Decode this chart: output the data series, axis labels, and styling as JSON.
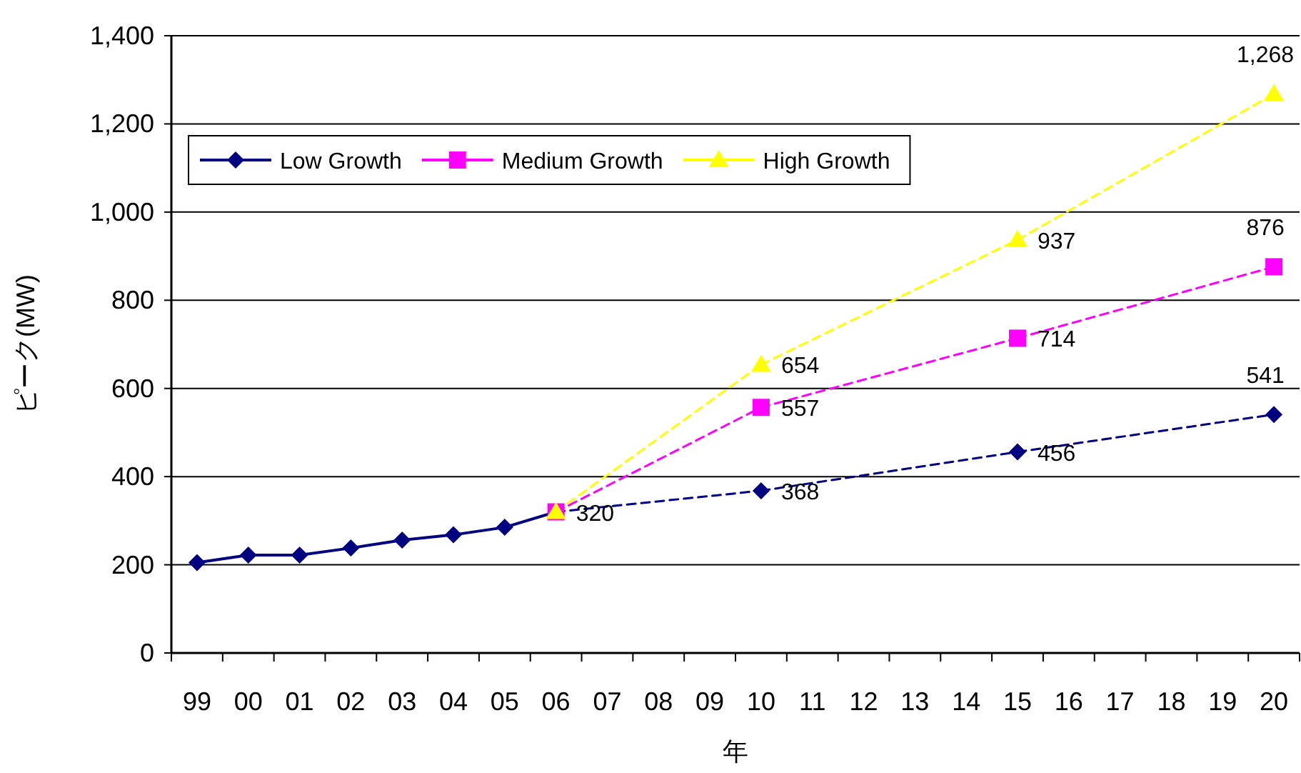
{
  "chart_data": {
    "type": "line",
    "xlabel": "年",
    "ylabel": "ピーク(MW)",
    "categories": [
      "99",
      "00",
      "01",
      "02",
      "03",
      "04",
      "05",
      "06",
      "07",
      "08",
      "09",
      "10",
      "11",
      "12",
      "13",
      "14",
      "15",
      "16",
      "17",
      "18",
      "19",
      "20"
    ],
    "ylim": [
      0,
      1400
    ],
    "yticks": [
      0,
      200,
      400,
      600,
      800,
      {
        "value": 1000,
        "label": "1,000"
      },
      {
        "value": 1200,
        "label": "1,200"
      },
      {
        "value": 1400,
        "label": "1,400"
      }
    ],
    "grid": "y",
    "legend": "top left",
    "series": [
      {
        "name": "Low Growth",
        "color": "#000080",
        "marker": "diamond",
        "values": [
          205,
          222,
          222,
          238,
          256,
          268,
          285,
          320,
          null,
          null,
          null,
          368,
          null,
          null,
          null,
          null,
          456,
          null,
          null,
          null,
          null,
          541
        ],
        "value_labels": [
          null,
          null,
          null,
          null,
          null,
          null,
          null,
          "320",
          null,
          null,
          null,
          "368",
          null,
          null,
          null,
          null,
          "456",
          null,
          null,
          null,
          null,
          "541"
        ]
      },
      {
        "name": "Medium Growth",
        "color": "#ff00ff",
        "marker": "square",
        "line_style": "dashed",
        "values": [
          null,
          null,
          null,
          null,
          null,
          null,
          null,
          320,
          null,
          null,
          null,
          557,
          null,
          null,
          null,
          null,
          714,
          null,
          null,
          null,
          null,
          876
        ],
        "value_labels": [
          null,
          null,
          null,
          null,
          null,
          null,
          null,
          null,
          null,
          null,
          null,
          "557",
          null,
          null,
          null,
          null,
          "714",
          null,
          null,
          null,
          null,
          "876"
        ]
      },
      {
        "name": "High Growth",
        "color": "#ffff00",
        "marker": "triangle",
        "line_style": "dashed",
        "values": [
          null,
          null,
          null,
          null,
          null,
          null,
          null,
          320,
          null,
          null,
          null,
          654,
          null,
          null,
          null,
          null,
          937,
          null,
          null,
          null,
          null,
          1268
        ],
        "value_labels": [
          null,
          null,
          null,
          null,
          null,
          null,
          null,
          null,
          null,
          null,
          null,
          "654",
          null,
          null,
          null,
          null,
          "937",
          null,
          null,
          null,
          null,
          "1,268"
        ]
      }
    ]
  }
}
